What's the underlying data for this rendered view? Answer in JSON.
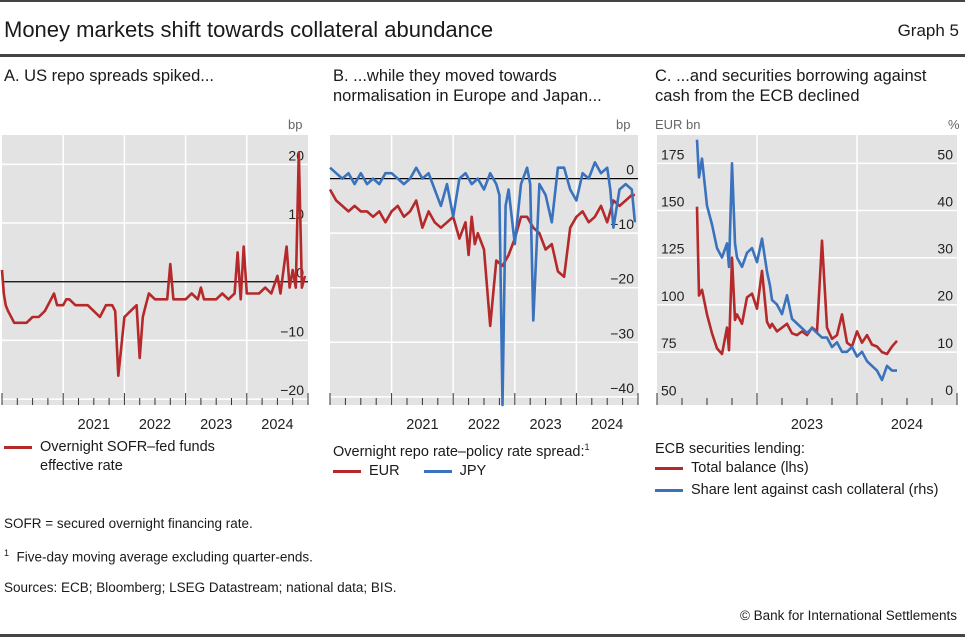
{
  "header": {
    "title": "Money markets shift towards collateral abundance",
    "graph_number": "Graph 5"
  },
  "colors": {
    "red": "#b5292b",
    "blue": "#3a72bd",
    "panel_bg": "#e3e3e3",
    "grid": "#ffffff",
    "zero_line": "#000000"
  },
  "panels": {
    "a": {
      "title": "A. US repo spreads spiked...",
      "unit_right": "bp",
      "legend": [
        {
          "label_line1": "Overnight SOFR–fed funds",
          "label_line2": "effective rate",
          "color": "#b5292b"
        }
      ]
    },
    "b": {
      "title_line1": "B. ...while they moved towards",
      "title_line2": "normalisation in Europe and Japan...",
      "unit_right": "bp",
      "legend_heading": "Overnight repo rate–policy rate spread:",
      "legend_heading_sup": "1",
      "legend": [
        {
          "label": "EUR",
          "color": "#b5292b"
        },
        {
          "label": "JPY",
          "color": "#3a72bd"
        }
      ]
    },
    "c": {
      "title_line1": "C. ...and securities borrowing against",
      "title_line2": "cash from the ECB declined",
      "unit_left": "EUR bn",
      "unit_right": "%",
      "legend_heading": "ECB securities lending:",
      "legend": [
        {
          "label": "Total balance (lhs)",
          "color": "#b5292b"
        },
        {
          "label": "Share lent against cash collateral (rhs)",
          "color": "#3a72bd"
        }
      ]
    }
  },
  "chart_data": [
    {
      "id": "a",
      "type": "line",
      "title": "A. US repo spreads spiked...",
      "xlabel": "",
      "ylabel": "bp",
      "x_ticks": [
        "2021",
        "2022",
        "2023",
        "2024"
      ],
      "xlim": [
        2020.0,
        2025.0
      ],
      "ylim": [
        -20,
        25
      ],
      "y_ticks": [
        20,
        10,
        0,
        -10,
        -20
      ],
      "y_axis_side": "right",
      "grid": true,
      "series": [
        {
          "name": "Overnight SOFR–fed funds effective rate",
          "color": "#b5292b",
          "x": [
            2020.0,
            2020.03,
            2020.06,
            2020.1,
            2020.15,
            2020.2,
            2020.3,
            2020.4,
            2020.5,
            2020.6,
            2020.7,
            2020.8,
            2020.85,
            2020.9,
            2021.0,
            2021.05,
            2021.1,
            2021.2,
            2021.3,
            2021.4,
            2021.5,
            2021.6,
            2021.7,
            2021.8,
            2021.85,
            2021.9,
            2022.0,
            2022.1,
            2022.2,
            2022.25,
            2022.3,
            2022.35,
            2022.4,
            2022.5,
            2022.6,
            2022.7,
            2022.75,
            2022.8,
            2022.9,
            2023.0,
            2023.1,
            2023.2,
            2023.25,
            2023.3,
            2023.4,
            2023.5,
            2023.6,
            2023.7,
            2023.8,
            2023.85,
            2023.9,
            2023.95,
            2024.0,
            2024.1,
            2024.2,
            2024.3,
            2024.4,
            2024.5,
            2024.55,
            2024.6,
            2024.65,
            2024.7,
            2024.75,
            2024.8,
            2024.85,
            2024.9,
            2024.95
          ],
          "y": [
            2,
            -2,
            -4,
            -5,
            -6,
            -7,
            -7,
            -7,
            -6,
            -6,
            -5,
            -3,
            -2,
            -4,
            -4,
            -3,
            -3,
            -4,
            -4,
            -4,
            -5,
            -6,
            -4,
            -4,
            -5,
            -16,
            -6,
            -5,
            -4,
            -13,
            -6,
            -4,
            -2,
            -3,
            -3,
            -3,
            3,
            -3,
            -3,
            -3,
            -2,
            -3,
            -1,
            -3,
            -3,
            -3,
            -2,
            -3,
            -2,
            5,
            -3,
            6,
            -2,
            -2,
            -2,
            -1,
            -2,
            1,
            -2,
            2,
            6,
            -1,
            2,
            -1,
            22,
            -1,
            1
          ]
        }
      ]
    },
    {
      "id": "b",
      "type": "line",
      "title": "B. ...while they moved towards normalisation in Europe and Japan...",
      "xlabel": "",
      "ylabel": "bp",
      "x_ticks": [
        "2021",
        "2022",
        "2023",
        "2024"
      ],
      "xlim": [
        2020.0,
        2025.0
      ],
      "ylim": [
        -40,
        5
      ],
      "y_ticks": [
        0,
        -10,
        -20,
        -30,
        -40
      ],
      "y_axis_side": "right",
      "grid": true,
      "series": [
        {
          "name": "EUR",
          "color": "#b5292b",
          "x": [
            2020.0,
            2020.1,
            2020.2,
            2020.3,
            2020.4,
            2020.5,
            2020.6,
            2020.7,
            2020.8,
            2020.9,
            2021.0,
            2021.1,
            2021.2,
            2021.3,
            2021.4,
            2021.5,
            2021.6,
            2021.7,
            2021.8,
            2021.9,
            2022.0,
            2022.1,
            2022.2,
            2022.25,
            2022.3,
            2022.35,
            2022.4,
            2022.5,
            2022.6,
            2022.7,
            2022.8,
            2022.9,
            2023.0,
            2023.1,
            2023.2,
            2023.3,
            2023.4,
            2023.5,
            2023.6,
            2023.7,
            2023.8,
            2023.9,
            2024.0,
            2024.1,
            2024.2,
            2024.3,
            2024.4,
            2024.5,
            2024.6,
            2024.7,
            2024.8,
            2024.9,
            2024.95
          ],
          "y": [
            -2,
            -4,
            -5,
            -6,
            -5,
            -6,
            -6,
            -7,
            -6,
            -8,
            -6,
            -5,
            -7,
            -6,
            -4,
            -9,
            -6,
            -8,
            -9,
            -8,
            -7,
            -11,
            -8,
            -14,
            -7,
            -12,
            -10,
            -13,
            -27,
            -15,
            -16,
            -14,
            -11,
            -7,
            -7,
            -9,
            -10,
            -13,
            -12,
            -17,
            -18,
            -9,
            -7,
            -6,
            -8,
            -7,
            -5,
            -8,
            -4,
            -5,
            -4,
            -3,
            -3
          ]
        },
        {
          "name": "JPY",
          "color": "#3a72bd",
          "x": [
            2020.0,
            2020.1,
            2020.2,
            2020.3,
            2020.4,
            2020.5,
            2020.6,
            2020.7,
            2020.8,
            2020.9,
            2021.0,
            2021.1,
            2021.2,
            2021.3,
            2021.4,
            2021.5,
            2021.6,
            2021.7,
            2021.8,
            2021.9,
            2022.0,
            2022.1,
            2022.2,
            2022.3,
            2022.4,
            2022.5,
            2022.6,
            2022.7,
            2022.75,
            2022.8,
            2022.85,
            2022.9,
            2023.0,
            2023.1,
            2023.2,
            2023.25,
            2023.3,
            2023.4,
            2023.5,
            2023.6,
            2023.7,
            2023.8,
            2023.9,
            2024.0,
            2024.1,
            2024.2,
            2024.3,
            2024.4,
            2024.5,
            2024.55,
            2024.6,
            2024.7,
            2024.8,
            2024.9,
            2024.95
          ],
          "y": [
            2,
            1,
            0,
            1,
            -1,
            1,
            -1,
            0,
            -1,
            1,
            1,
            0,
            -1,
            0,
            2,
            0,
            1,
            -2,
            -5,
            -1,
            -7,
            0,
            1,
            -1,
            0,
            -2,
            1,
            -1,
            -3,
            -42,
            -5,
            -2,
            -12,
            -1,
            2,
            -1,
            -26,
            -1,
            -3,
            -8,
            2,
            2,
            -2,
            -4,
            1,
            0,
            3,
            1,
            2,
            -2,
            -9,
            -2,
            -1,
            -2,
            -8
          ]
        }
      ]
    },
    {
      "id": "c",
      "type": "line",
      "title": "C. ...and securities borrowing against cash from the ECB declined",
      "xlabel": "",
      "ylabel_left": "EUR bn",
      "ylabel_right": "%",
      "x_ticks": [
        "2023",
        "2024"
      ],
      "xlim": [
        2022.0,
        2025.0
      ],
      "ylim_left": [
        50,
        185
      ],
      "ylim_right": [
        0,
        54
      ],
      "y_ticks_left": [
        175,
        150,
        125,
        100,
        75,
        50
      ],
      "y_ticks_right": [
        50,
        40,
        30,
        20,
        10,
        0
      ],
      "grid": true,
      "series": [
        {
          "name": "Total balance (lhs)",
          "axis": "left",
          "color": "#b5292b",
          "x": [
            2022.4,
            2022.42,
            2022.45,
            2022.5,
            2022.55,
            2022.6,
            2022.65,
            2022.7,
            2022.72,
            2022.75,
            2022.78,
            2022.8,
            2022.85,
            2022.9,
            2022.95,
            2023.0,
            2023.05,
            2023.1,
            2023.13,
            2023.15,
            2023.2,
            2023.25,
            2023.3,
            2023.35,
            2023.4,
            2023.45,
            2023.5,
            2023.55,
            2023.6,
            2023.65,
            2023.7,
            2023.75,
            2023.8,
            2023.85,
            2023.9,
            2023.95,
            2024.0,
            2024.05,
            2024.1,
            2024.15,
            2024.2,
            2024.25,
            2024.3,
            2024.35,
            2024.4
          ],
          "y": [
            152,
            105,
            108,
            95,
            85,
            77,
            74,
            88,
            76,
            125,
            92,
            95,
            90,
            104,
            106,
            98,
            118,
            91,
            88,
            90,
            86,
            88,
            90,
            85,
            84,
            86,
            84,
            88,
            86,
            134,
            88,
            82,
            84,
            95,
            80,
            78,
            86,
            80,
            84,
            79,
            78,
            75,
            74,
            78,
            81
          ]
        },
        {
          "name": "Share lent against cash collateral (rhs)",
          "axis": "right",
          "color": "#3a72bd",
          "x": [
            2022.4,
            2022.42,
            2022.45,
            2022.5,
            2022.55,
            2022.6,
            2022.65,
            2022.7,
            2022.72,
            2022.75,
            2022.78,
            2022.8,
            2022.85,
            2022.9,
            2022.95,
            2023.0,
            2023.05,
            2023.1,
            2023.13,
            2023.15,
            2023.2,
            2023.25,
            2023.3,
            2023.35,
            2023.4,
            2023.45,
            2023.5,
            2023.55,
            2023.6,
            2023.65,
            2023.7,
            2023.75,
            2023.8,
            2023.85,
            2023.9,
            2023.95,
            2024.0,
            2024.05,
            2024.1,
            2024.15,
            2024.2,
            2024.25,
            2024.3,
            2024.35,
            2024.4
          ],
          "y": [
            55,
            47,
            51,
            41,
            37,
            32,
            30,
            33,
            28,
            50,
            33,
            30,
            28,
            31,
            32,
            29,
            34,
            27,
            24,
            21,
            20,
            18,
            22,
            17,
            16,
            15,
            14,
            15,
            14,
            13,
            13,
            11,
            12,
            10,
            10,
            11,
            9,
            10,
            8,
            7,
            6,
            4,
            7,
            6,
            6
          ]
        }
      ]
    }
  ],
  "footnotes": {
    "abbrev": "SOFR = secured overnight financing rate.",
    "note1_sup": "1",
    "note1": "Five-day moving average excluding quarter-ends.",
    "sources": "Sources: ECB; Bloomberg; LSEG Datastream; national data; BIS.",
    "copyright": "© Bank for International Settlements"
  }
}
